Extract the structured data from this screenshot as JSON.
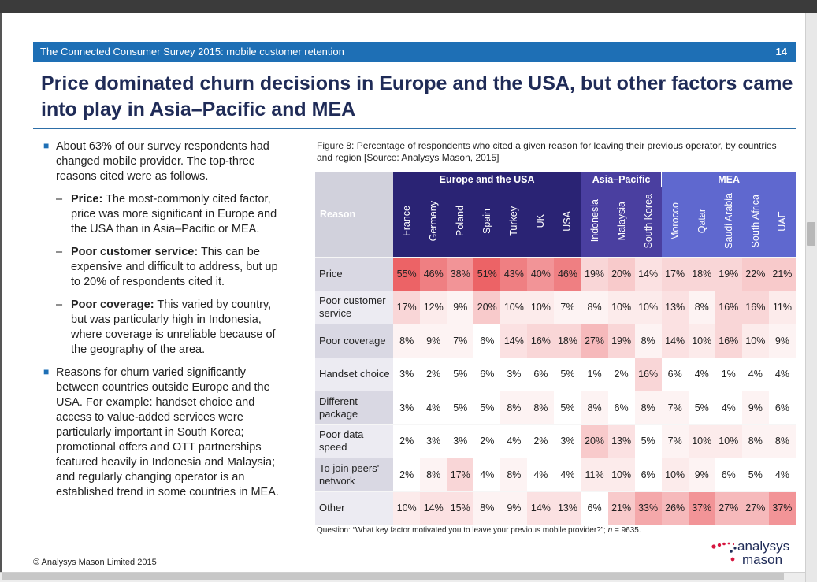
{
  "header": {
    "title": "The Connected Consumer Survey 2015: mobile customer retention",
    "page": "14"
  },
  "slide_title": "Price dominated churn decisions in Europe and the USA, but other factors came into play in Asia–Pacific and MEA",
  "bullets": {
    "b1": "About 63% of our survey respondents had changed mobile provider. The top-three reasons cited were as follows.",
    "s1_bold": "Price:",
    "s1_text": " The most-commonly cited factor, price was more significant in Europe and the USA than in Asia–Pacific or MEA.",
    "s2_bold": "Poor customer service:",
    "s2_text": " This can be expensive and difficult to address, but up to 20% of respondents cited it.",
    "s3_bold": "Poor coverage:",
    "s3_text": " This varied by country, but was particularly high in Indonesia, where coverage is unreliable because of the geography of the area.",
    "b2": "Reasons for churn varied significantly between countries outside Europe and the USA. For example: handset choice and access to value-added services were particularly important in South Korea; promotional offers and OTT partnerships featured heavily in Indonesia and Malaysia; and regularly changing operator is an established trend in some countries in MEA."
  },
  "figure_caption": "Figure 8: Percentage of respondents who cited a given reason for leaving their previous operator, by countries and region [Source: Analysys Mason, 2015]",
  "table": {
    "reason_header": "Reason",
    "groups": [
      {
        "label": "Europe and the USA",
        "span": 7
      },
      {
        "label": "Asia–Pacific",
        "span": 3
      },
      {
        "label": "MEA",
        "span": 5
      }
    ],
    "countries": [
      "France",
      "Germany",
      "Poland",
      "Spain",
      "Turkey",
      "UK",
      "USA",
      "Indonesia",
      "Malaysia",
      "South Korea",
      "Morocco",
      "Qatar",
      "Saudi Arabia",
      "South Africa",
      "UAE"
    ],
    "rows": [
      {
        "reason": "Price",
        "values": [
          55,
          46,
          38,
          51,
          43,
          40,
          46,
          19,
          20,
          14,
          17,
          18,
          19,
          22,
          21
        ]
      },
      {
        "reason": "Poor customer service",
        "values": [
          17,
          12,
          9,
          20,
          10,
          10,
          7,
          8,
          10,
          10,
          13,
          8,
          16,
          16,
          11
        ]
      },
      {
        "reason": "Poor coverage",
        "values": [
          8,
          9,
          7,
          6,
          14,
          16,
          18,
          27,
          19,
          8,
          14,
          10,
          16,
          10,
          9
        ]
      },
      {
        "reason": "Handset choice",
        "values": [
          3,
          2,
          5,
          6,
          3,
          6,
          5,
          1,
          2,
          16,
          6,
          4,
          1,
          4,
          4
        ]
      },
      {
        "reason": "Different package",
        "values": [
          3,
          4,
          5,
          5,
          8,
          8,
          5,
          8,
          6,
          8,
          7,
          5,
          4,
          9,
          6
        ]
      },
      {
        "reason": "Poor data speed",
        "values": [
          2,
          3,
          3,
          2,
          4,
          2,
          3,
          20,
          13,
          5,
          7,
          10,
          10,
          8,
          8
        ]
      },
      {
        "reason": "To join peers' network",
        "values": [
          2,
          8,
          17,
          4,
          8,
          4,
          4,
          11,
          10,
          6,
          10,
          9,
          6,
          5,
          4
        ]
      },
      {
        "reason": "Other",
        "values": [
          10,
          14,
          15,
          8,
          9,
          14,
          13,
          6,
          21,
          33,
          26,
          37,
          27,
          27,
          37
        ]
      }
    ]
  },
  "colors": {
    "accent": "#1e6fb5",
    "title": "#1f2b57",
    "europe": "#2a2374",
    "asia_pacific": "#4a3fa0",
    "mea": "#5f68cf",
    "heat_high": "#ee6f73"
  },
  "question_prefix": "Question: “What key factor motivated you to leave your previous mobile provider?”; ",
  "question_n_label": "n",
  "question_n_value": " = 9635.",
  "copyright": "© Analysys Mason Limited 2015",
  "logo": {
    "line1": "analysys",
    "line2": "mason"
  }
}
